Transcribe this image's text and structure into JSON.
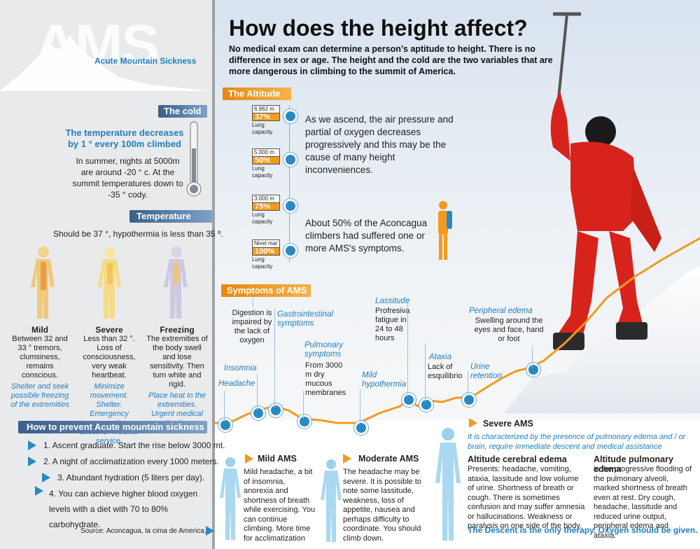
{
  "logo": {
    "text": "AMS",
    "subtitle": "Acute Mountain Sickness"
  },
  "title": "How does the height affect?",
  "intro": "No medical exam can determine a person’s aptitude to height. There is no difference in sex or age. The height and the cold are the two variables that are more dangerous in climbing to the summit of America.",
  "cold": {
    "header": "The cold",
    "headline": "The temperature decreases by 1 ° every 100m climbed",
    "text": "In summer, nights at 5000m are around -20 ° c. At the summit temperatures down to -35 ° cody."
  },
  "temperature": {
    "header": "Temperature",
    "text": "Should be 37 °, hypothermia is less than 35 º.",
    "levels": [
      {
        "name": "Mild",
        "desc": "Between 32 and 33 ° tremors, clumsiness, remains conscious.",
        "advice": "Shelter and seek possible freezing of the extremities"
      },
      {
        "name": "Severe",
        "desc": "Less than 32 °. Loss of consciousness, very weak heartbeat.",
        "advice": "Minimize movement. Shelter. Emergency evacuation stretcher medical service."
      },
      {
        "name": "Freezing",
        "desc": "The extremities of the body swell and lose sensitivity. Then turn white and rigid.",
        "advice": "Place heat in the extremities. Urgent medical attention."
      }
    ]
  },
  "prevent": {
    "header": "How to prevent Acute mountain sickness",
    "items": [
      "1. Ascent graduate. Start the rise below 3000 mt.",
      "2. A night of acclimatization every 1000 meters.",
      "3. Abundant hydration (5 liters per day).",
      "4. You can achieve higher blood oxygen levels with a diet with 70 to 80% carbohydrate."
    ],
    "source": "Source: Aconcagua, la cima de America."
  },
  "altitude": {
    "header": "The Altitude",
    "levels": [
      {
        "height": "6.962 m",
        "percent": "37%",
        "label": "Lung capacity",
        "value": 37
      },
      {
        "height": "5.000 m",
        "percent": "50%",
        "label": "Lung capacity",
        "value": 50
      },
      {
        "height": "3.000 m",
        "percent": "75%",
        "label": "Lung capacity",
        "value": 75
      },
      {
        "height": "Nivel mar",
        "percent": "100%",
        "label": "Lung capacity",
        "value": 100
      }
    ],
    "text1": "As we ascend, the air pressure and partial of oxygen decreases progressively and this may be the cause of many height inconveniences.",
    "text2": "About 50% of the Aconcagua climbers had suffered one or more AMS's symptoms."
  },
  "symptoms": {
    "header": "Symptoms of AMS",
    "items": [
      {
        "name": "Headache",
        "desc": ""
      },
      {
        "name": "Insomnia",
        "desc": ""
      },
      {
        "name": "",
        "desc": "Digestion is impaired by the lack of oxygen"
      },
      {
        "name": "Gastrointestinal symptoms",
        "desc": ""
      },
      {
        "name": "Pulmonary symptoms",
        "desc": "From 3000 m dry mucous membranes"
      },
      {
        "name": "Mild hypothermia",
        "desc": ""
      },
      {
        "name": "Lassitude",
        "desc": "Profresiva fatigue in 24 to 48 hours"
      },
      {
        "name": "Ataxia",
        "desc": "Lack of esquilibrio"
      },
      {
        "name": "Urine retention",
        "desc": ""
      },
      {
        "name": "Peripheral edema",
        "desc": "Swelling around the eyes and face, hand or foot"
      }
    ]
  },
  "mild_ams": {
    "title": "Mild AMS",
    "text": "Mild headache, a bit of insomnia, anorexia and shortness of breath while exercising. You can continue climbing. More time for acclimatization"
  },
  "moderate_ams": {
    "title": "Moderate AMS",
    "text": "The headache may be severe. It is possible to note some lassitude, weakness, loss of appetite, nausea and perhaps difficulty to coordinate. You should climb down."
  },
  "severe_ams": {
    "title": "Severe AMS",
    "intro": "It is characterized by the presence of pulmonary edema and / or brain, require immediate descent and medical assistance",
    "cerebral": {
      "title": "Altitude cerebral edema",
      "text": "Presents: headache, vomiting, ataxia, lassitude and low volume of urine. Shortness of breath or cough. There is sometimes confusion and may suffer amnesia or hallucinations. Weakness or paralysis on one side of the body."
    },
    "pulmonary": {
      "title": "Altitude pulmonary edema",
      "text": "is the progressive flooding of the pulmonary alveoli, marked shortness of breath even at rest. Dry cough, headache, lassitude and reduced urine output, peripheral edema and ataxia."
    },
    "footer": "The Descent is the only therapy. Oxygen should be given."
  },
  "colors": {
    "accent_blue": "#1f7fc1",
    "accent_orange": "#f39a1e",
    "header_blue": "#3b5f8a"
  }
}
